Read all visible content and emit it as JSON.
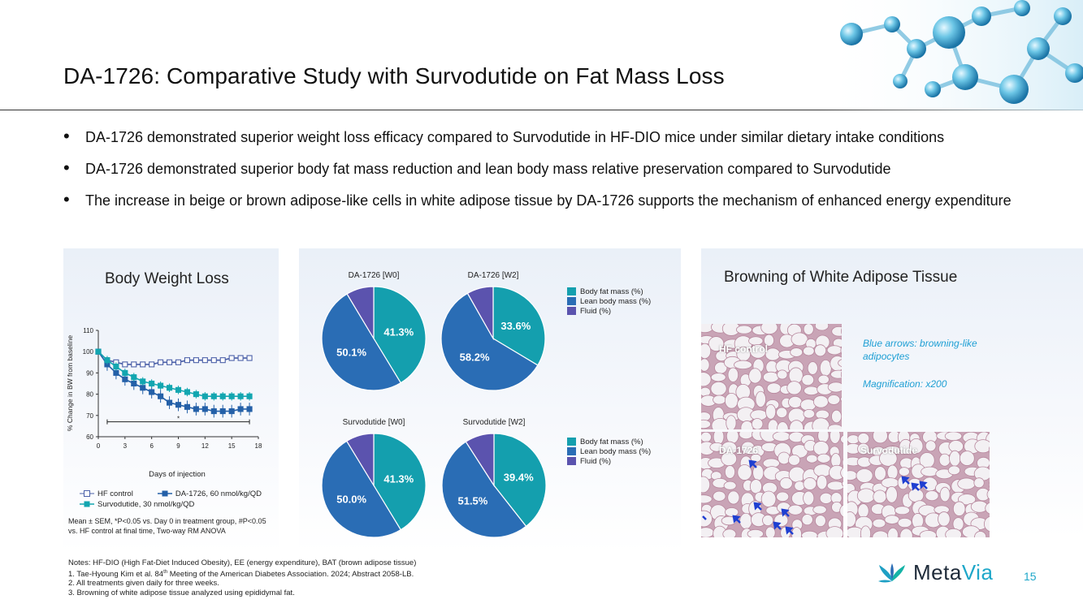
{
  "title": "DA-1726: Comparative Study with Survodutide on Fat Mass Loss",
  "bullets": [
    "DA-1726 demonstrated superior weight loss efficacy compared to Survodutide in HF-DIO mice under similar dietary intake conditions",
    "DA-1726 demonstrated superior body fat mass reduction and lean body mass relative preservation compared to Survodutide",
    "The increase in beige or brown adipose-like cells in white adipose tissue by DA-1726 supports the mechanism of enhanced energy expenditure"
  ],
  "body_weight": {
    "title": "Body Weight Loss",
    "ylabel": "% Change in BW from baseline",
    "xlabel": "Days of injection",
    "yticks": [
      "60",
      "70",
      "80",
      "90",
      "100",
      "110"
    ],
    "xticks": [
      "0",
      "3",
      "6",
      "9",
      "12",
      "15",
      "18"
    ],
    "star": "*",
    "legend": {
      "hf": "HF control",
      "da": "DA-1726, 60 nmol/kg/QD",
      "sv": "Survodutide, 30 nmol/kg/QD"
    },
    "stats": "Mean ± SEM, *P<0.05 vs. Day 0 in treatment group, #P<0.05 vs. HF control at final time, Two-way RM ANOVA",
    "colors": {
      "hf": "#4a5fa8",
      "da": "#2460a8",
      "sv": "#13a6b0"
    }
  },
  "chart_data": [
    {
      "type": "line",
      "title": "Body Weight Loss",
      "xlabel": "Days of injection",
      "ylabel": "% Change in BW from baseline",
      "xlim": [
        0,
        18
      ],
      "ylim": [
        60,
        110
      ],
      "x": [
        0,
        1,
        2,
        3,
        4,
        5,
        6,
        7,
        8,
        9,
        10,
        11,
        12,
        13,
        14,
        15,
        16,
        17
      ],
      "series": [
        {
          "name": "HF control",
          "values": [
            100,
            96,
            95,
            94,
            94,
            94,
            94,
            95,
            95,
            95,
            96,
            96,
            96,
            96,
            96,
            97,
            97,
            97
          ]
        },
        {
          "name": "DA-1726, 60 nmol/kg/QD",
          "values": [
            100,
            94,
            90,
            87,
            85,
            83,
            81,
            79,
            76,
            75,
            74,
            73,
            73,
            72,
            72,
            72,
            73,
            73
          ]
        },
        {
          "name": "Survodutide, 30 nmol/kg/QD",
          "values": [
            100,
            96,
            93,
            90,
            88,
            86,
            85,
            84,
            83,
            82,
            81,
            80,
            79,
            79,
            79,
            79,
            79,
            79
          ]
        }
      ]
    },
    {
      "type": "pie",
      "title": "DA-1726 [W0]",
      "labels": [
        "Body fat mass (%)",
        "Lean body mass (%)",
        "Fluid (%)"
      ],
      "values": [
        41.3,
        50.1,
        8.6
      ]
    },
    {
      "type": "pie",
      "title": "DA-1726 [W2]",
      "labels": [
        "Body fat mass (%)",
        "Lean body mass (%)",
        "Fluid (%)"
      ],
      "values": [
        33.6,
        58.2,
        8.2
      ]
    },
    {
      "type": "pie",
      "title": "Survodutide [W0]",
      "labels": [
        "Body fat mass (%)",
        "Lean body mass (%)",
        "Fluid (%)"
      ],
      "values": [
        41.3,
        50.0,
        8.7
      ]
    },
    {
      "type": "pie",
      "title": "Survodutide [W2]",
      "labels": [
        "Body fat mass (%)",
        "Lean body mass (%)",
        "Fluid (%)"
      ],
      "values": [
        39.4,
        51.5,
        9.1
      ]
    }
  ],
  "pies": {
    "colors": [
      "#149fae",
      "#2a6db5",
      "#5b53ae"
    ],
    "legend_top": [
      "Body fat mass (%)",
      "Lean body mass (%)",
      "Fluid (%)"
    ],
    "legend_bottom": [
      "Body fat mass (%)",
      "Lean body mass (%)",
      "Fluid (%)"
    ],
    "items": [
      {
        "title": "DA-1726 [W0]",
        "fat_label": "41.3%",
        "lean_label": "50.1%"
      },
      {
        "title": "DA-1726 [W2]",
        "fat_label": "33.6%",
        "lean_label": "58.2%"
      },
      {
        "title": "Survodutide  [W0]",
        "fat_label": "41.3%",
        "lean_label": "50.0%"
      },
      {
        "title": "Survodutide  [W2]",
        "fat_label": "39.4%",
        "lean_label": "51.5%"
      }
    ]
  },
  "browning": {
    "title": "Browning of White Adipose Tissue",
    "hf_label": "HF control",
    "da_label": "DA-1726",
    "sv_label": "Survodutide",
    "note1": "Blue arrows: browning-like adipocytes",
    "note2": "Magnification: x200"
  },
  "notes": [
    "Notes: HF-DIO (High Fat-Diet Induced Obesity), EE (energy expenditure), BAT (brown adipose tissue)",
    "Meeting of the American Diabetes Association. 2024; Abstract 2058-LB.",
    "2. All treatments given daily for three weeks.",
    "3. Browning of white adipose tissue analyzed using epididymal fat."
  ],
  "note1_prefix": "1.  Tae-Hyoung Kim et al. 84",
  "note1_sup": "th",
  "brand": {
    "name_a": "Meta",
    "name_b": "Via",
    "page": "15"
  }
}
